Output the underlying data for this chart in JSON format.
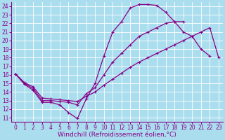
{
  "xlabel": "Windchill (Refroidissement éolien,°C)",
  "bg_color": "#aaddee",
  "line_color": "#880088",
  "xlim": [
    -0.5,
    23.5
  ],
  "ylim": [
    10.5,
    24.5
  ],
  "xticks": [
    0,
    1,
    2,
    3,
    4,
    5,
    6,
    7,
    8,
    9,
    10,
    11,
    12,
    13,
    14,
    15,
    16,
    17,
    18,
    19,
    20,
    21,
    22,
    23
  ],
  "yticks": [
    11,
    12,
    13,
    14,
    15,
    16,
    17,
    18,
    19,
    20,
    21,
    22,
    23,
    24
  ],
  "line1_x": [
    0,
    1,
    2,
    3,
    4,
    5,
    6,
    7,
    8,
    9,
    10,
    11,
    12,
    13,
    14,
    15,
    16,
    17,
    18,
    19,
    20,
    21,
    22
  ],
  "line1_y": [
    16.1,
    14.9,
    14.2,
    12.8,
    12.8,
    12.5,
    11.6,
    10.9,
    13.2,
    15.0,
    18.2,
    21.0,
    22.2,
    23.8,
    24.2,
    24.2,
    24.1,
    23.3,
    22.2,
    21.0,
    20.5,
    19.0,
    18.2
  ],
  "line2_x": [
    0,
    1,
    2,
    3,
    4,
    5,
    6,
    7,
    8,
    9,
    10,
    11,
    12,
    13,
    14,
    15,
    16,
    17,
    18,
    19
  ],
  "line2_y": [
    16.1,
    15.0,
    14.4,
    13.0,
    13.0,
    12.9,
    12.8,
    12.5,
    13.8,
    14.5,
    16.0,
    17.5,
    18.5,
    19.5,
    20.5,
    21.0,
    21.5,
    22.0,
    22.2,
    22.2
  ],
  "line3_x": [
    0,
    1,
    2,
    3,
    4,
    5,
    6,
    7,
    8,
    9,
    10,
    11,
    12,
    13,
    14,
    15,
    16,
    17,
    18,
    19,
    20,
    21,
    22,
    23
  ],
  "line3_y": [
    16.1,
    15.1,
    14.6,
    13.3,
    13.2,
    13.1,
    13.0,
    12.9,
    13.5,
    14.0,
    14.8,
    15.5,
    16.2,
    16.9,
    17.5,
    18.0,
    18.5,
    19.0,
    19.5,
    20.0,
    20.5,
    21.0,
    21.5,
    18.0
  ],
  "marker": "+",
  "markersize": 3,
  "linewidth": 0.9,
  "grid_color": "#ffffff",
  "xlabel_fontsize": 6.5,
  "tick_fontsize": 5.5
}
